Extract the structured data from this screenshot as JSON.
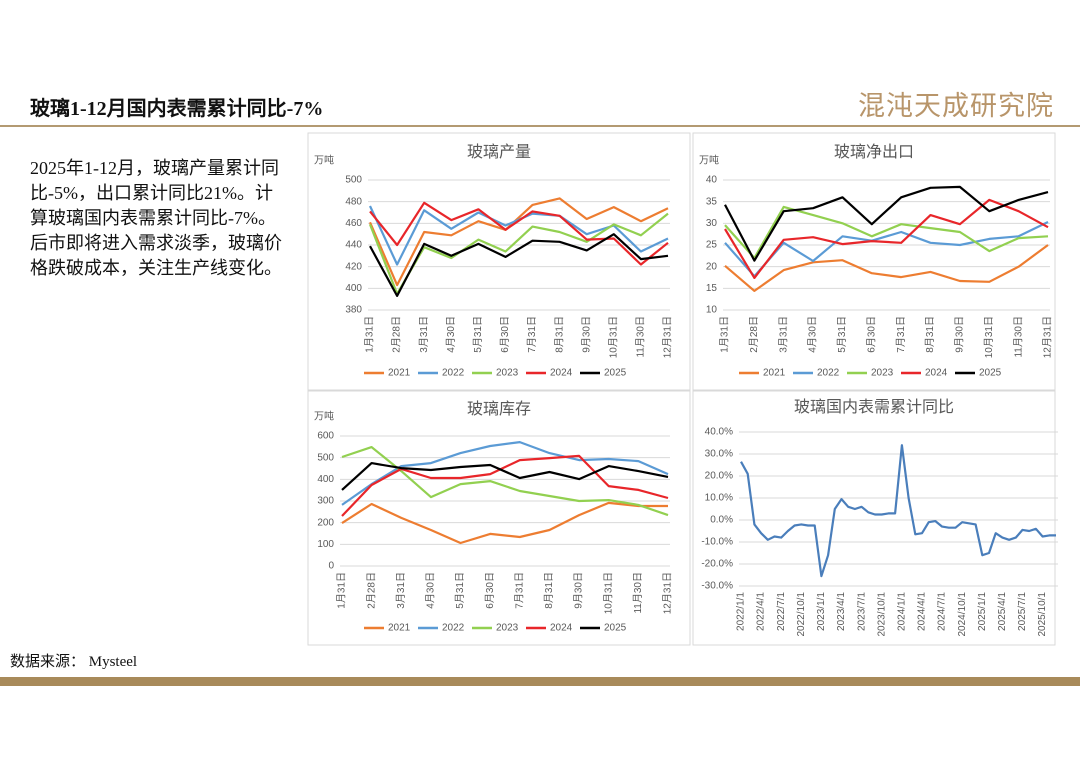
{
  "header": {
    "title": "玻璃1-12月国内表需累计同比-7%",
    "logo": "混沌天成研究院"
  },
  "body_text": [
    "2025年1-12月，玻璃产量累计同比-5%，出口累计同比21%。计算玻璃国内表需累计同比-7%。",
    "后市即将进入需求淡季，玻璃价格跌破成本，关注生产线变化。"
  ],
  "source": "数据来源： Mysteel",
  "chart_data": [
    {
      "type": "line",
      "title": "玻璃产量",
      "y_label": "万吨",
      "grid": true,
      "legend": "bottom",
      "categories": [
        "1月31日",
        "2月28日",
        "3月31日",
        "4月30日",
        "5月31日",
        "6月30日",
        "7月31日",
        "8月31日",
        "9月30日",
        "10月31日",
        "11月30日",
        "12月31日"
      ],
      "ylim": [
        380,
        500
      ],
      "yticks": [
        380,
        400,
        420,
        440,
        460,
        480,
        500
      ],
      "series": [
        {
          "name": "2021",
          "color": "#ed7d31",
          "values": [
            461,
            403,
            452,
            449,
            462,
            454,
            477,
            483,
            464,
            475,
            462,
            474
          ]
        },
        {
          "name": "2022",
          "color": "#5b9bd5",
          "values": [
            476,
            422,
            472,
            455,
            470,
            458,
            469,
            467,
            450,
            458,
            434,
            446
          ]
        },
        {
          "name": "2023",
          "color": "#92d050",
          "values": [
            459,
            395,
            438,
            428,
            445,
            434,
            457,
            452,
            443,
            459,
            449,
            469
          ]
        },
        {
          "name": "2024",
          "color": "#e8262a",
          "values": [
            471,
            440,
            479,
            463,
            473,
            454,
            471,
            467,
            445,
            446,
            422,
            442
          ]
        },
        {
          "name": "2025",
          "color": "#000000",
          "values": [
            439,
            393,
            441,
            430,
            441,
            429,
            444,
            443,
            435,
            450,
            427,
            430
          ]
        }
      ]
    },
    {
      "type": "line",
      "title": "玻璃净出口",
      "y_label": "万吨",
      "grid": true,
      "legend": "bottom",
      "categories": [
        "1月31日",
        "2月28日",
        "3月31日",
        "4月30日",
        "5月31日",
        "6月30日",
        "7月31日",
        "8月31日",
        "9月30日",
        "10月31日",
        "11月30日",
        "12月31日"
      ],
      "ylim": [
        10,
        40
      ],
      "yticks": [
        10,
        15,
        20,
        25,
        30,
        35,
        40
      ],
      "series": [
        {
          "name": "2021",
          "color": "#ed7d31",
          "values": [
            20.2,
            14.4,
            19.2,
            21,
            21.5,
            18.5,
            17.6,
            18.8,
            16.7,
            16.5,
            20,
            25
          ]
        },
        {
          "name": "2022",
          "color": "#5b9bd5",
          "values": [
            25.5,
            17.8,
            25.5,
            21.3,
            27,
            26,
            28,
            25.5,
            25,
            26.4,
            27,
            30.3
          ]
        },
        {
          "name": "2023",
          "color": "#92d050",
          "values": [
            29.6,
            22,
            33.8,
            31.9,
            30,
            27,
            29.8,
            28.9,
            28,
            23.6,
            26.6,
            27
          ]
        },
        {
          "name": "2024",
          "color": "#e8262a",
          "values": [
            28.7,
            17.4,
            26.2,
            26.8,
            25.2,
            25.9,
            25.5,
            31.9,
            29.8,
            35.4,
            32.8,
            29.1
          ]
        },
        {
          "name": "2025",
          "color": "#000000",
          "values": [
            34.3,
            21.4,
            32.8,
            33.5,
            36,
            29.8,
            36,
            38.2,
            38.4,
            32.8,
            35.4,
            37.2
          ]
        }
      ]
    },
    {
      "type": "line",
      "title": "玻璃库存",
      "y_label": "万吨",
      "grid": true,
      "legend": "bottom",
      "categories": [
        "1月31日",
        "2月28日",
        "3月31日",
        "4月30日",
        "5月31日",
        "6月30日",
        "7月31日",
        "8月31日",
        "9月30日",
        "10月31日",
        "11月30日",
        "12月31日"
      ],
      "ylim": [
        0,
        600
      ],
      "yticks": [
        0,
        100,
        200,
        300,
        400,
        500,
        600
      ],
      "series": [
        {
          "name": "2021",
          "color": "#ed7d31",
          "values": [
            198,
            286,
            222,
            166,
            106,
            148,
            134,
            166,
            235,
            291,
            277,
            277
          ]
        },
        {
          "name": "2022",
          "color": "#5b9bd5",
          "values": [
            282,
            378,
            461,
            475,
            521,
            554,
            572,
            521,
            489,
            494,
            484,
            424
          ]
        },
        {
          "name": "2023",
          "color": "#92d050",
          "values": [
            503,
            549,
            438,
            318,
            378,
            392,
            346,
            323,
            300,
            304,
            282,
            235
          ]
        },
        {
          "name": "2024",
          "color": "#e8262a",
          "values": [
            231,
            374,
            448,
            406,
            406,
            424,
            489,
            498,
            508,
            369,
            351,
            314
          ]
        },
        {
          "name": "2025",
          "color": "#000000",
          "values": [
            351,
            475,
            452,
            443,
            457,
            466,
            406,
            434,
            401,
            461,
            438,
            411
          ]
        }
      ]
    },
    {
      "type": "line",
      "title": "玻璃国内表需累计同比",
      "grid": true,
      "color": "#4a7ebb",
      "categories": [
        "2022/1/1",
        null,
        null,
        "2022/4/1",
        null,
        null,
        "2022/7/1",
        null,
        null,
        "2022/10/1",
        null,
        null,
        "2023/1/1",
        null,
        null,
        "2023/4/1",
        null,
        null,
        "2023/7/1",
        null,
        null,
        "2023/10/1",
        null,
        null,
        "2024/1/1",
        null,
        null,
        "2024/4/1",
        null,
        null,
        "2024/7/1",
        null,
        null,
        "2024/10/1",
        null,
        null,
        "2025/1/1",
        null,
        null,
        "2025/4/1",
        null,
        null,
        "2025/7/1",
        null,
        null,
        "2025/10/1",
        null,
        null
      ],
      "ylim": [
        -30,
        40
      ],
      "yticks": [
        {
          "value": -30,
          "label": "-30.0%"
        },
        {
          "value": -20,
          "label": "-20.0%"
        },
        {
          "value": -10,
          "label": "-10.0%"
        },
        {
          "value": 0,
          "label": "0.0%"
        },
        {
          "value": 10,
          "label": "10.0%"
        },
        {
          "value": 20,
          "label": "20.0%"
        },
        {
          "value": 30,
          "label": "30.0%"
        },
        {
          "value": 40,
          "label": "40.0%"
        }
      ],
      "values": [
        26.5,
        21,
        -2,
        -6,
        -9,
        -7.5,
        -8,
        -5,
        -2.5,
        -2,
        -2.5,
        -2.5,
        -25.5,
        -16,
        5,
        9.5,
        6,
        5,
        6,
        3.5,
        2.5,
        2.5,
        3,
        3,
        34,
        10,
        -6.5,
        -6,
        -1,
        -0.5,
        -3,
        -3.5,
        -3.5,
        -1,
        -1.5,
        -2,
        -16,
        -15,
        -6,
        -8,
        -9,
        -8,
        -4.5,
        -5,
        -4,
        -7.5,
        -7,
        -7
      ]
    }
  ]
}
